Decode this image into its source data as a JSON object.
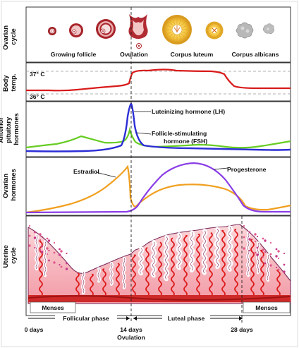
{
  "rows": {
    "ovarian_cycle": "Ovarian\ncycle",
    "body_temp": "Body\ntemp.",
    "anterior_pituitary": "Anterior\npituitary\nhormones",
    "ovarian_hormones": "Ovarian\nhormones",
    "uterine_cycle": "Uterine\ncycle"
  },
  "ovarian_stages": {
    "growing_follicle": "Growing follicle",
    "ovulation": "Ovulation",
    "corpus_luteum": "Corpus luteum",
    "corpus_albicans": "Corpus albicans"
  },
  "temperature": {
    "high": "37° C",
    "low": "36° C"
  },
  "pituitary": {
    "lh": "Luteinizing hormone (LH)",
    "fsh_line1": "Follicle-stimulating",
    "fsh_line2": "hormone (FSH)"
  },
  "ovarian_hormones": {
    "estradiol": "Estradiol",
    "progesterone": "Progesterone"
  },
  "phases": {
    "menses_left": "Menses",
    "follicular": "Follicular phase",
    "luteal": "Luteal phase",
    "menses_right": "Menses"
  },
  "timeline": {
    "day0": "0 days",
    "day14": "14 days",
    "day14_sub": "Ovulation",
    "day28": "28 days"
  },
  "colors": {
    "temperature": "#d91a1a",
    "lh": "#2c2ed6",
    "fsh": "#66cc22",
    "estradiol": "#f0a020",
    "progesterone": "#8a3ee6",
    "endometrium": "#f6b8c0",
    "vessels": "#dd1b1b"
  }
}
